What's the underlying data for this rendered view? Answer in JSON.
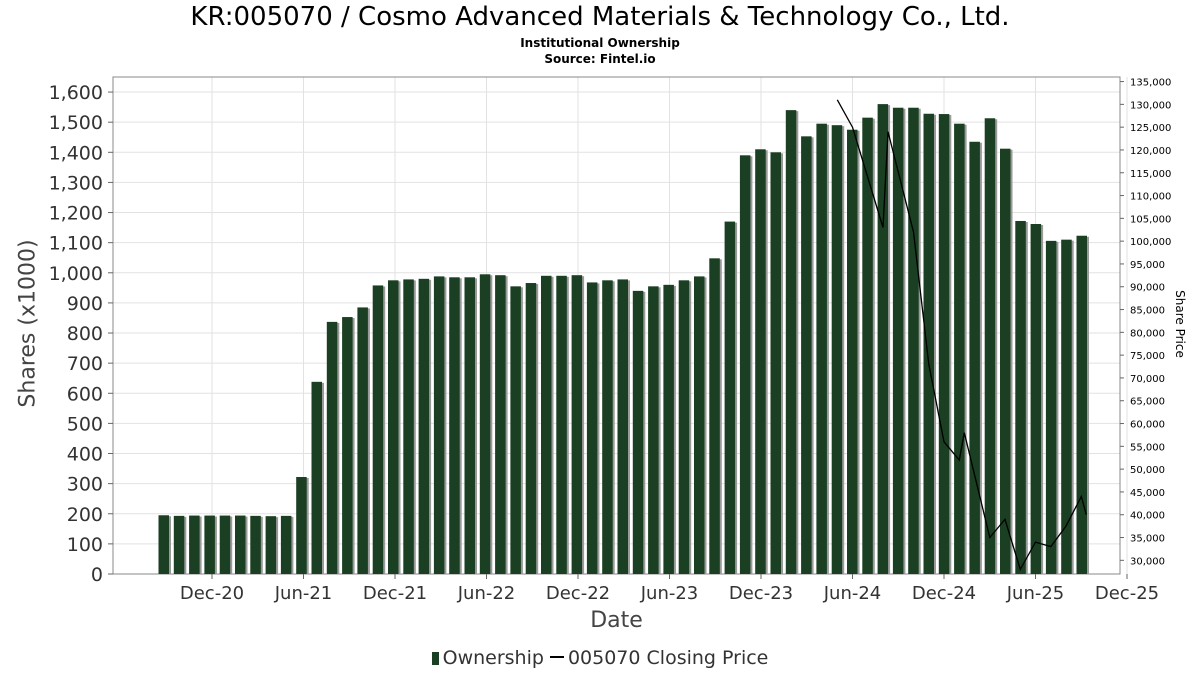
{
  "chart_data": {
    "type": "bar",
    "title": "KR:005070 / Cosmo Advanced Materials & Technology Co., Ltd.",
    "subtitle": "Institutional Ownership",
    "source": "Source: Fintel.io",
    "xlabel": "Date",
    "ylabel": "Shares (x1000)",
    "y2label": "Share Price",
    "ylim": [
      0,
      1650
    ],
    "y2lim": [
      27000,
      136000
    ],
    "yticks": [
      "0",
      "100",
      "200",
      "300",
      "400",
      "500",
      "600",
      "700",
      "800",
      "900",
      "1,000",
      "1,100",
      "1,200",
      "1,300",
      "1,400",
      "1,500",
      "1,600"
    ],
    "y2ticks": [
      "30,000",
      "35,000",
      "40,000",
      "45,000",
      "50,000",
      "55,000",
      "60,000",
      "65,000",
      "70,000",
      "75,000",
      "80,000",
      "85,000",
      "90,000",
      "95,000",
      "100,000",
      "105,000",
      "110,000",
      "115,000",
      "120,000",
      "125,000",
      "130,000",
      "135,000"
    ],
    "xticks": [
      "Dec-20",
      "Jun-21",
      "Dec-21",
      "Jun-22",
      "Dec-22",
      "Jun-23",
      "Dec-23",
      "Jun-24",
      "Dec-24",
      "Jun-25",
      "Dec-25"
    ],
    "grid": true,
    "legend_position": "bottom",
    "series": [
      {
        "name": "Ownership",
        "color": "#1a3f22",
        "values": [
          195,
          193,
          194,
          194,
          194,
          194,
          193,
          192,
          193,
          322,
          638,
          837,
          853,
          885,
          958,
          975,
          978,
          980,
          988,
          985,
          985,
          995,
          992,
          955,
          966,
          990,
          990,
          992,
          968,
          975,
          978,
          940,
          955,
          960,
          975,
          988,
          1048,
          1170,
          1390,
          1410,
          1400,
          1540,
          1453,
          1495,
          1490,
          1475,
          1515,
          1560,
          1548,
          1548,
          1528,
          1527,
          1495,
          1435,
          1513,
          1412,
          1172,
          1162,
          1106,
          1110,
          1123
        ]
      },
      {
        "name": "005070 Closing Price",
        "color": "#000000",
        "points": [
          {
            "x": "May-24",
            "y": 131000
          },
          {
            "x": "Jun-24",
            "y": 125000
          },
          {
            "x": "Aug-24",
            "y": 103000
          },
          {
            "x": "Aug-24",
            "y": 124000
          },
          {
            "x": "Oct-24",
            "y": 102000
          },
          {
            "x": "Nov-24",
            "y": 73000
          },
          {
            "x": "Dec-24",
            "y": 56000
          },
          {
            "x": "Jan-25",
            "y": 52000
          },
          {
            "x": "Jan-25",
            "y": 58000
          },
          {
            "x": "Mar-25",
            "y": 35000
          },
          {
            "x": "Apr-25",
            "y": 39000
          },
          {
            "x": "May-25",
            "y": 28000
          },
          {
            "x": "Jun-25",
            "y": 34000
          },
          {
            "x": "Jul-25",
            "y": 33000
          },
          {
            "x": "Aug-25",
            "y": 37500
          },
          {
            "x": "Sep-25",
            "y": 44000
          },
          {
            "x": "Sep-25",
            "y": 40000
          }
        ]
      }
    ]
  }
}
